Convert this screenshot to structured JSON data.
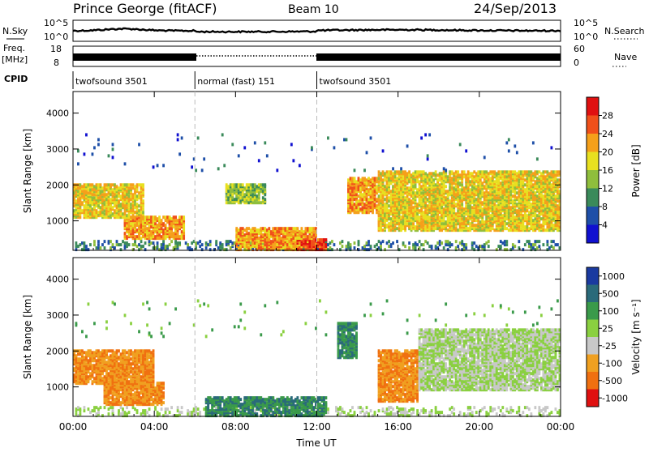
{
  "header": {
    "title": "Prince George (fitACF)",
    "beam": "Beam 10",
    "date": "24/Sep/2013"
  },
  "status_panels": {
    "nsky": {
      "label": "N.Sky",
      "tick_top": "10^5",
      "tick_bottom": "10^0"
    },
    "nsearch": {
      "label": "N.Search",
      "tick_top": "10^5",
      "tick_bottom": "10^0"
    },
    "freq": {
      "label_line1": "Freq.",
      "label_line2": "[MHz]",
      "tick_top": "18",
      "tick_bottom": "8"
    },
    "nave": {
      "label": "Nave",
      "tick_top": "60",
      "tick_bottom": "0"
    },
    "cpid": {
      "label": "CPID",
      "segments": [
        {
          "name": "twofsound 3501",
          "start_hour": 0,
          "end_hour": 6
        },
        {
          "name": "normal (fast) 151",
          "start_hour": 6,
          "end_hour": 12
        },
        {
          "name": "twofsound 3501",
          "start_hour": 12,
          "end_hour": 24
        }
      ]
    }
  },
  "colorbars": {
    "power": {
      "label": "Power [dB]",
      "ticks": [
        "28",
        "24",
        "20",
        "16",
        "12",
        "8",
        "4"
      ],
      "colors": [
        "#e01010",
        "#f0501a",
        "#f5a01a",
        "#e8e020",
        "#8fbe3c",
        "#3a8a5a",
        "#1e4fa8",
        "#1010d0"
      ]
    },
    "velocity": {
      "label": "Velocity [m s⁻¹]",
      "ticks": [
        "1000",
        "500",
        "100",
        "25",
        "-25",
        "-100",
        "-500",
        "-1000"
      ],
      "colors": [
        "#1a3aa0",
        "#2a6a7a",
        "#3a9a4a",
        "#8ad040",
        "#c8c8c8",
        "#f0a020",
        "#f07010",
        "#e01010"
      ]
    }
  },
  "chart_data": [
    {
      "type": "heatmap",
      "name": "power",
      "xlabel": "",
      "ylabel": "Slant Range [km]",
      "xlim": [
        0,
        24
      ],
      "ylim": [
        180,
        4600
      ],
      "yticks": [
        1000,
        2000,
        3000,
        4000
      ],
      "colorbar_label": "Power [dB]",
      "echo_bands": [
        {
          "t0": 0,
          "t1": 3.5,
          "r0": 1100,
          "r1": 2000,
          "level": "medium-high"
        },
        {
          "t0": 2.5,
          "t1": 5.5,
          "r0": 500,
          "r1": 1100,
          "level": "high"
        },
        {
          "t0": 7.5,
          "t1": 9.5,
          "r0": 1500,
          "r1": 2000,
          "level": "medium"
        },
        {
          "t0": 8,
          "t1": 12,
          "r0": 200,
          "r1": 800,
          "level": "high"
        },
        {
          "t0": 11,
          "t1": 12.5,
          "r0": 200,
          "r1": 500,
          "level": "max"
        },
        {
          "t0": 13.5,
          "t1": 15,
          "r0": 1200,
          "r1": 2200,
          "level": "high"
        },
        {
          "t0": 15,
          "t1": 24,
          "r0": 700,
          "r1": 2400,
          "level": "medium-high"
        }
      ]
    },
    {
      "type": "heatmap",
      "name": "velocity",
      "xlabel": "Time UT",
      "ylabel": "Slant Range [km]",
      "xlim": [
        0,
        24
      ],
      "ylim": [
        180,
        4600
      ],
      "xticks": [
        "00:00",
        "04:00",
        "08:00",
        "12:00",
        "16:00",
        "20:00",
        "00:00"
      ],
      "yticks": [
        1000,
        2000,
        3000,
        4000
      ],
      "colorbar_label": "Velocity [m s⁻¹]",
      "echo_bands": [
        {
          "t0": 0,
          "t1": 4,
          "r0": 1100,
          "r1": 2000,
          "sign": "negative"
        },
        {
          "t0": 1.5,
          "t1": 4.5,
          "r0": 500,
          "r1": 1100,
          "sign": "negative"
        },
        {
          "t0": 6.5,
          "t1": 12.5,
          "r0": 200,
          "r1": 700,
          "sign": "positive"
        },
        {
          "t0": 13,
          "t1": 14,
          "r0": 1800,
          "r1": 2800,
          "sign": "positive"
        },
        {
          "t0": 15,
          "t1": 17,
          "r0": 600,
          "r1": 2000,
          "sign": "negative"
        },
        {
          "t0": 17,
          "t1": 24,
          "r0": 900,
          "r1": 2600,
          "sign": "near-zero"
        }
      ]
    }
  ]
}
